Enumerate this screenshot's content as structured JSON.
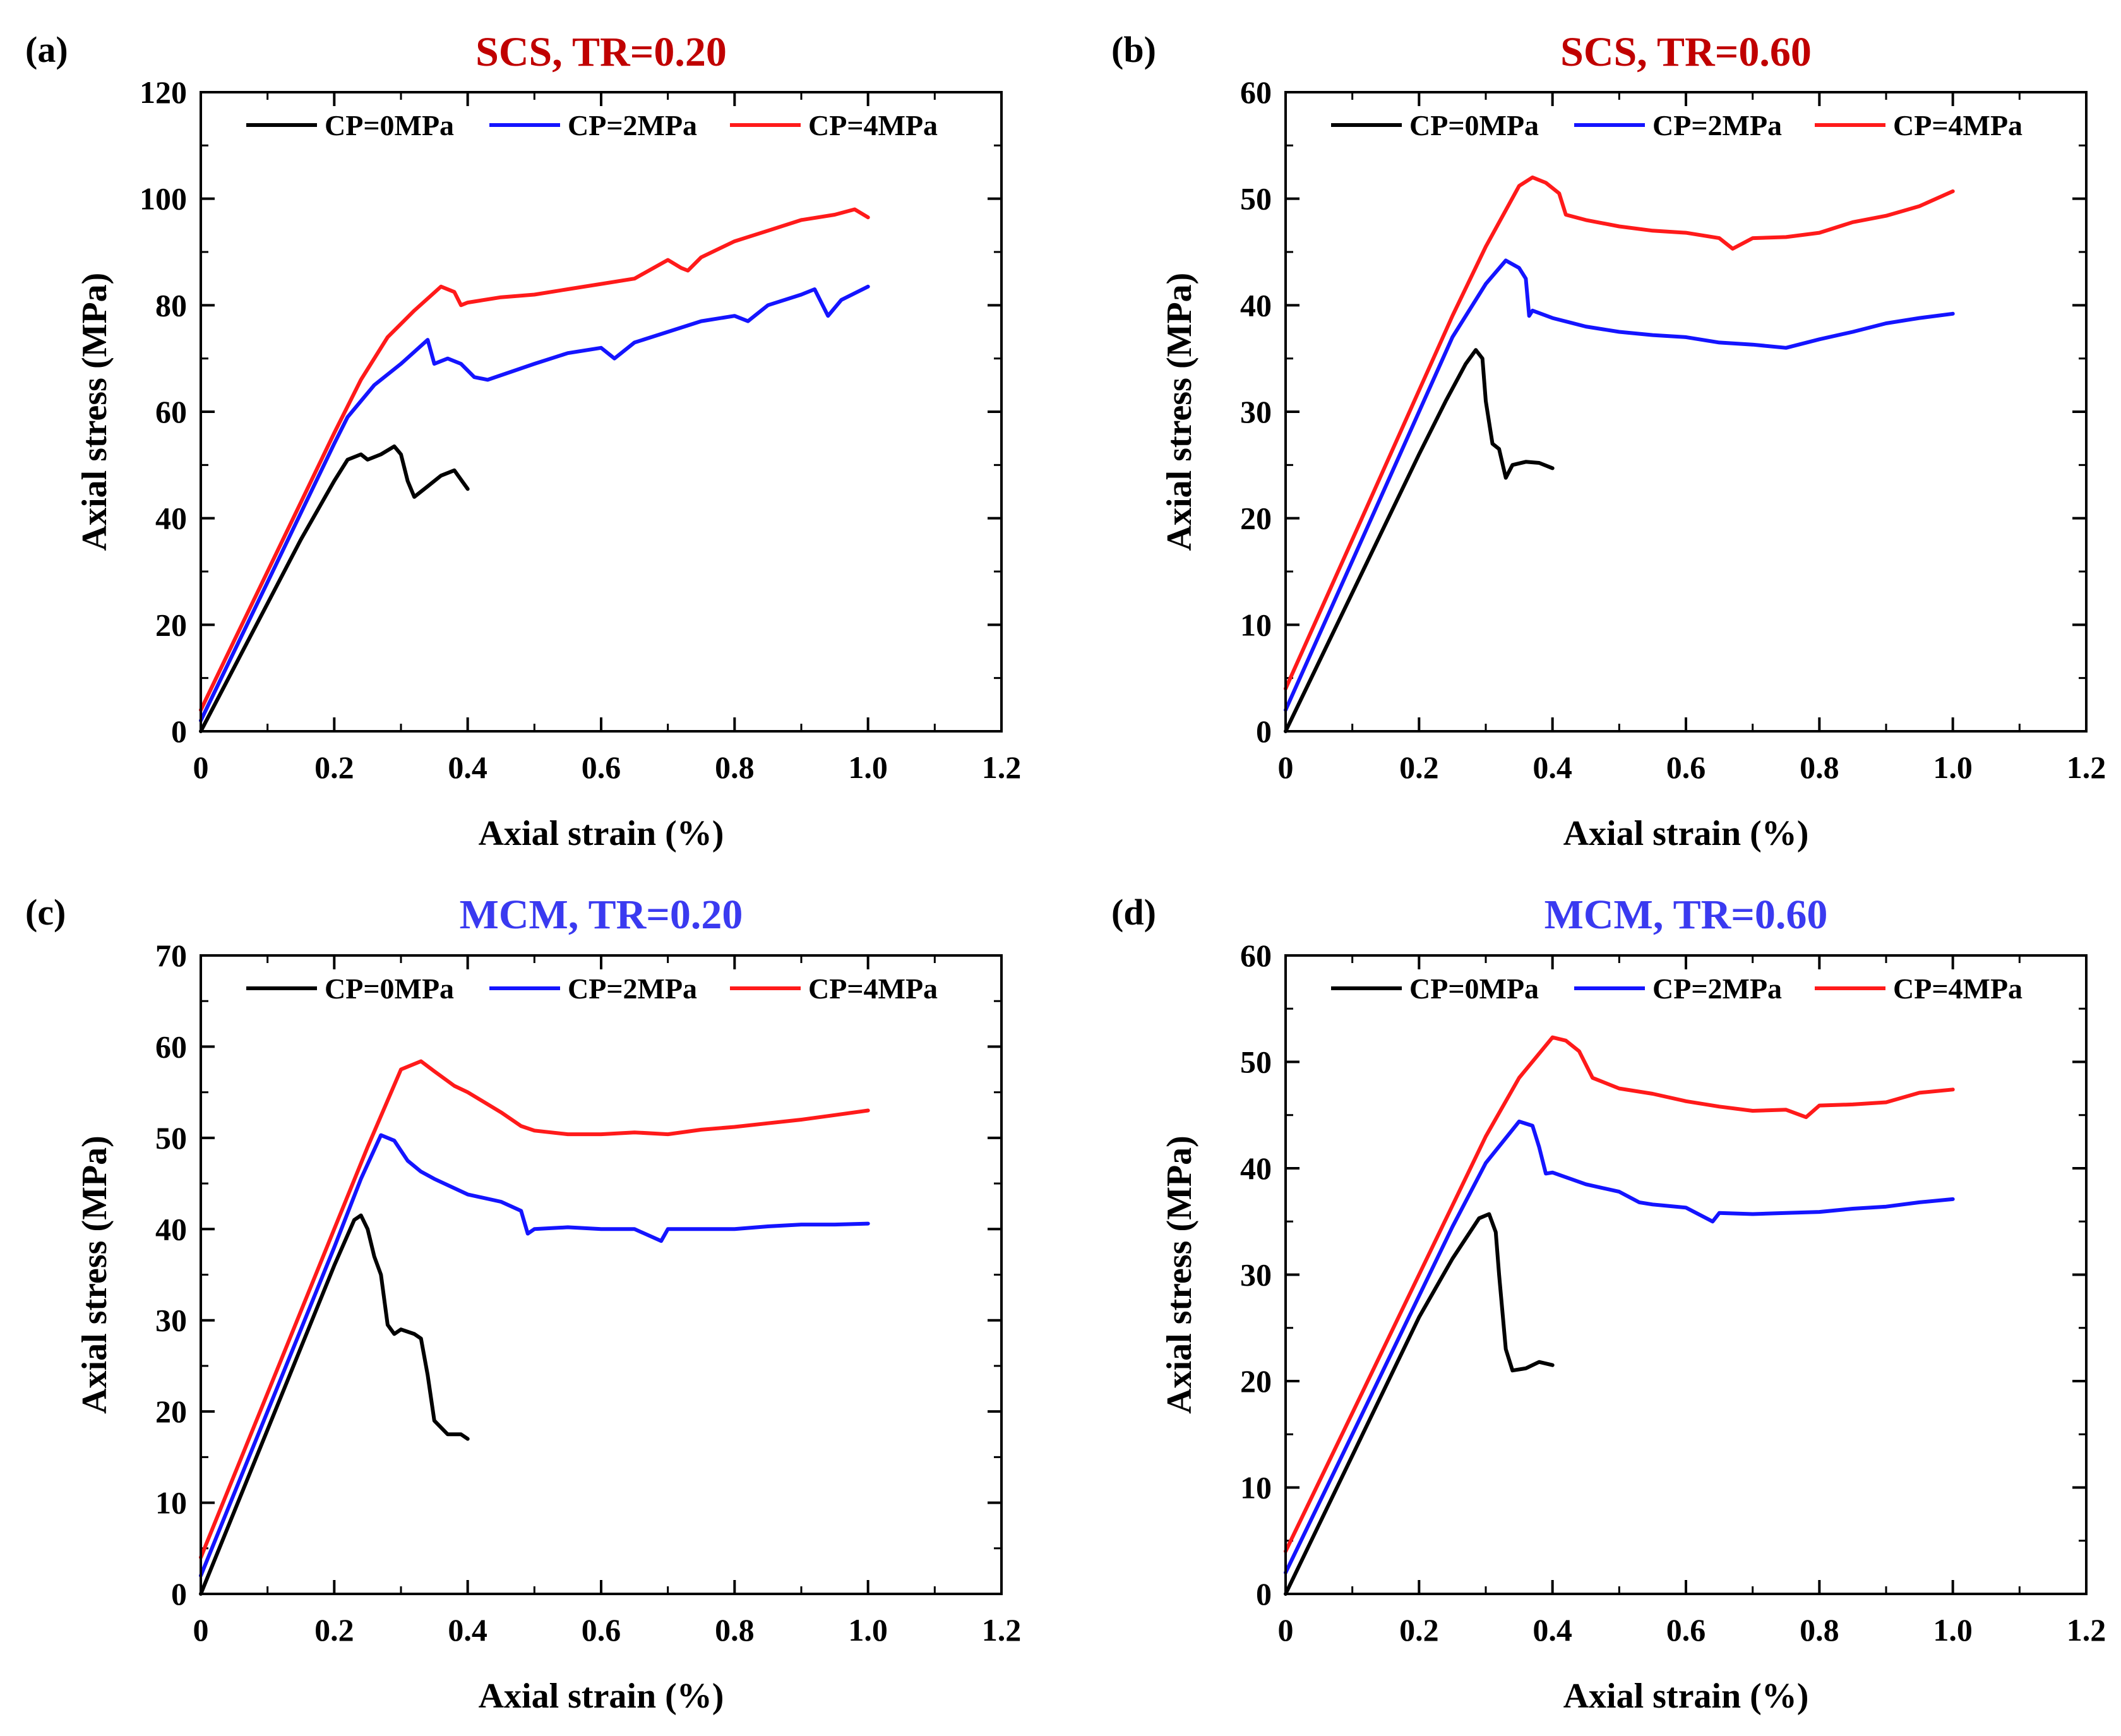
{
  "line_colors": {
    "CP=0MPa": "#000000",
    "CP=2MPa": "#1414ff",
    "CP=4MPa": "#ff1a1a"
  },
  "chart_data": [
    {
      "panel_label": "(a)",
      "title": "SCS, TR=0.20",
      "title_color": "#c00000",
      "type": "line",
      "xlabel": "Axial strain (%)",
      "ylabel": "Axial stress (MPa)",
      "xlim": [
        0,
        1.2
      ],
      "ylim": [
        0,
        120
      ],
      "xticks": [
        "0",
        "0.2",
        "0.4",
        "0.6",
        "0.8",
        "1.0",
        "1.2"
      ],
      "yticks": [
        "0",
        "20",
        "40",
        "60",
        "80",
        "100",
        "120"
      ],
      "legend_placement": "top",
      "grid": false,
      "series": [
        {
          "name": "CP=0MPa",
          "x": [
            0,
            0.05,
            0.1,
            0.15,
            0.2,
            0.22,
            0.24,
            0.25,
            0.27,
            0.29,
            0.3,
            0.31,
            0.32,
            0.34,
            0.36,
            0.38,
            0.4
          ],
          "y": [
            0,
            12,
            24,
            36,
            47,
            51,
            52,
            51,
            52,
            53.5,
            52,
            47,
            44,
            46,
            48,
            49,
            45.5
          ]
        },
        {
          "name": "CP=2MPa",
          "x": [
            0,
            0.05,
            0.1,
            0.15,
            0.2,
            0.22,
            0.26,
            0.3,
            0.34,
            0.35,
            0.37,
            0.39,
            0.41,
            0.43,
            0.5,
            0.55,
            0.6,
            0.62,
            0.65,
            0.7,
            0.75,
            0.8,
            0.82,
            0.85,
            0.9,
            0.92,
            0.94,
            0.96,
            1.0
          ],
          "y": [
            2,
            15,
            28,
            41,
            54,
            59,
            65,
            69,
            73.5,
            69,
            70,
            69,
            66.5,
            66,
            69,
            71,
            72,
            70,
            73,
            75,
            77,
            78,
            77,
            80,
            82,
            83,
            78,
            81,
            83.5
          ]
        },
        {
          "name": "CP=4MPa",
          "x": [
            0,
            0.05,
            0.1,
            0.15,
            0.2,
            0.24,
            0.28,
            0.32,
            0.36,
            0.38,
            0.39,
            0.4,
            0.45,
            0.5,
            0.55,
            0.6,
            0.65,
            0.7,
            0.72,
            0.73,
            0.75,
            0.8,
            0.85,
            0.9,
            0.95,
            0.98,
            1.0
          ],
          "y": [
            4,
            17,
            30,
            43,
            56,
            66,
            74,
            79,
            83.5,
            82.5,
            80,
            80.5,
            81.5,
            82,
            83,
            84,
            85,
            88.5,
            87,
            86.5,
            89,
            92,
            94,
            96,
            97,
            98,
            96.5
          ]
        }
      ]
    },
    {
      "panel_label": "(b)",
      "title": "SCS, TR=0.60",
      "title_color": "#c00000",
      "type": "line",
      "xlabel": "Axial strain (%)",
      "ylabel": "Axial stress (MPa)",
      "xlim": [
        0,
        1.2
      ],
      "ylim": [
        0,
        60
      ],
      "xticks": [
        "0",
        "0.2",
        "0.4",
        "0.6",
        "0.8",
        "1.0",
        "1.2"
      ],
      "yticks": [
        "0",
        "10",
        "20",
        "30",
        "40",
        "50",
        "60"
      ],
      "legend_placement": "top",
      "grid": false,
      "series": [
        {
          "name": "CP=0MPa",
          "x": [
            0,
            0.05,
            0.1,
            0.15,
            0.2,
            0.24,
            0.27,
            0.285,
            0.295,
            0.3,
            0.31,
            0.32,
            0.33,
            0.34,
            0.36,
            0.38,
            0.4
          ],
          "y": [
            0,
            6.5,
            13,
            19.5,
            26,
            31,
            34.5,
            35.8,
            35,
            31,
            27,
            26.5,
            23.8,
            25,
            25.3,
            25.2,
            24.7
          ]
        },
        {
          "name": "CP=2MPa",
          "x": [
            0,
            0.05,
            0.1,
            0.15,
            0.2,
            0.25,
            0.3,
            0.33,
            0.35,
            0.36,
            0.365,
            0.37,
            0.4,
            0.45,
            0.5,
            0.55,
            0.6,
            0.65,
            0.7,
            0.75,
            0.8,
            0.85,
            0.9,
            0.95,
            1.0
          ],
          "y": [
            2,
            9,
            16,
            23,
            30,
            37,
            42,
            44.2,
            43.5,
            42.5,
            39,
            39.5,
            38.8,
            38,
            37.5,
            37.2,
            37,
            36.5,
            36.3,
            36,
            36.8,
            37.5,
            38.3,
            38.8,
            39.2
          ]
        },
        {
          "name": "CP=4MPa",
          "x": [
            0,
            0.05,
            0.1,
            0.15,
            0.2,
            0.25,
            0.3,
            0.35,
            0.37,
            0.39,
            0.41,
            0.42,
            0.45,
            0.5,
            0.55,
            0.6,
            0.65,
            0.67,
            0.7,
            0.75,
            0.8,
            0.85,
            0.9,
            0.95,
            1.0
          ],
          "y": [
            4,
            11,
            18,
            25,
            32,
            39,
            45.5,
            51.2,
            52,
            51.5,
            50.5,
            48.5,
            48,
            47.4,
            47,
            46.8,
            46.3,
            45.3,
            46.3,
            46.4,
            46.8,
            47.8,
            48.4,
            49.3,
            50.7
          ]
        }
      ]
    },
    {
      "panel_label": "(c)",
      "title": "MCM, TR=0.20",
      "title_color": "#3a3af0",
      "type": "line",
      "xlabel": "Axial strain (%)",
      "ylabel": "Axial stress (MPa)",
      "xlim": [
        0,
        1.2
      ],
      "ylim": [
        0,
        70
      ],
      "xticks": [
        "0",
        "0.2",
        "0.4",
        "0.6",
        "0.8",
        "1.0",
        "1.2"
      ],
      "yticks": [
        "0",
        "10",
        "20",
        "30",
        "40",
        "50",
        "60",
        "70"
      ],
      "legend_placement": "top",
      "grid": false,
      "series": [
        {
          "name": "CP=0MPa",
          "x": [
            0,
            0.05,
            0.1,
            0.15,
            0.2,
            0.23,
            0.24,
            0.25,
            0.26,
            0.27,
            0.28,
            0.29,
            0.3,
            0.32,
            0.33,
            0.34,
            0.35,
            0.37,
            0.39,
            0.4
          ],
          "y": [
            0,
            9,
            18,
            27,
            36,
            41,
            41.5,
            40,
            37,
            35,
            29.5,
            28.5,
            29,
            28.5,
            28,
            24,
            19,
            17.5,
            17.5,
            17
          ]
        },
        {
          "name": "CP=2MPa",
          "x": [
            0,
            0.05,
            0.1,
            0.15,
            0.2,
            0.24,
            0.27,
            0.29,
            0.31,
            0.33,
            0.35,
            0.4,
            0.45,
            0.48,
            0.49,
            0.5,
            0.55,
            0.6,
            0.65,
            0.69,
            0.7,
            0.75,
            0.8,
            0.85,
            0.9,
            0.95,
            1.0
          ],
          "y": [
            2,
            11,
            20,
            29,
            38,
            45.5,
            50.3,
            49.7,
            47.5,
            46.3,
            45.5,
            43.8,
            43,
            42,
            39.5,
            40,
            40.2,
            40,
            40,
            38.7,
            40,
            40,
            40,
            40.3,
            40.5,
            40.5,
            40.6
          ]
        },
        {
          "name": "CP=4MPa",
          "x": [
            0,
            0.05,
            0.1,
            0.15,
            0.2,
            0.25,
            0.3,
            0.33,
            0.35,
            0.38,
            0.4,
            0.45,
            0.48,
            0.5,
            0.55,
            0.6,
            0.65,
            0.7,
            0.75,
            0.8,
            0.85,
            0.9,
            0.95,
            1.0
          ],
          "y": [
            4,
            13,
            22,
            31,
            40,
            49,
            57.5,
            58.4,
            57.3,
            55.7,
            55,
            52.8,
            51.3,
            50.8,
            50.4,
            50.4,
            50.6,
            50.4,
            50.9,
            51.2,
            51.6,
            52,
            52.5,
            53
          ]
        }
      ]
    },
    {
      "panel_label": "(d)",
      "title": "MCM, TR=0.60",
      "title_color": "#3a3af0",
      "type": "line",
      "xlabel": "Axial strain (%)",
      "ylabel": "Axial stress (MPa)",
      "xlim": [
        0,
        1.2
      ],
      "ylim": [
        0,
        60
      ],
      "xticks": [
        "0",
        "0.2",
        "0.4",
        "0.6",
        "0.8",
        "1.0",
        "1.2"
      ],
      "yticks": [
        "0",
        "10",
        "20",
        "30",
        "40",
        "50",
        "60"
      ],
      "legend_placement": "top",
      "grid": false,
      "series": [
        {
          "name": "CP=0MPa",
          "x": [
            0,
            0.05,
            0.1,
            0.15,
            0.2,
            0.25,
            0.29,
            0.305,
            0.315,
            0.32,
            0.33,
            0.34,
            0.36,
            0.38,
            0.4
          ],
          "y": [
            0,
            6.5,
            13,
            19.5,
            26,
            31.5,
            35.3,
            35.7,
            34,
            30,
            23,
            21,
            21.2,
            21.8,
            21.5
          ]
        },
        {
          "name": "CP=2MPa",
          "x": [
            0,
            0.05,
            0.1,
            0.15,
            0.2,
            0.25,
            0.3,
            0.35,
            0.37,
            0.38,
            0.39,
            0.4,
            0.45,
            0.5,
            0.53,
            0.55,
            0.6,
            0.64,
            0.65,
            0.7,
            0.75,
            0.8,
            0.85,
            0.9,
            0.95,
            1.0
          ],
          "y": [
            2,
            8.5,
            15,
            21.5,
            28,
            34.5,
            40.5,
            44.4,
            44,
            42,
            39.5,
            39.6,
            38.5,
            37.8,
            36.8,
            36.6,
            36.3,
            35,
            35.8,
            35.7,
            35.8,
            35.9,
            36.2,
            36.4,
            36.8,
            37.1
          ]
        },
        {
          "name": "CP=4MPa",
          "x": [
            0,
            0.05,
            0.1,
            0.15,
            0.2,
            0.25,
            0.3,
            0.35,
            0.4,
            0.42,
            0.44,
            0.46,
            0.5,
            0.55,
            0.6,
            0.65,
            0.7,
            0.75,
            0.78,
            0.8,
            0.85,
            0.9,
            0.95,
            1.0
          ],
          "y": [
            4,
            10.5,
            17,
            23.5,
            30,
            36.5,
            43,
            48.5,
            52.3,
            52,
            51,
            48.5,
            47.5,
            47,
            46.3,
            45.8,
            45.4,
            45.5,
            44.8,
            45.9,
            46,
            46.2,
            47.1,
            47.4
          ]
        }
      ]
    }
  ]
}
